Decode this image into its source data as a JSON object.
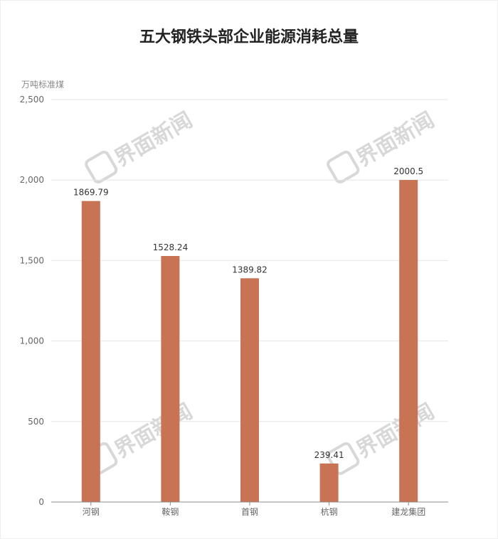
{
  "colors": {
    "bar": "#c87353",
    "grid": "#e6e6ea",
    "axis": "#8c8c8c",
    "text": "#666666",
    "value_label": "#333333",
    "watermark": "#d8d8d8"
  },
  "watermark_text": "界面新闻",
  "chart_data": {
    "type": "bar",
    "title": "五大钢铁头部企业能源消耗总量",
    "ylabel": "万吨标准煤",
    "xlabel": "",
    "categories": [
      "河钢",
      "鞍钢",
      "首钢",
      "杭钢",
      "建龙集团"
    ],
    "values": [
      1869.79,
      1528.24,
      1389.82,
      239.41,
      2000.5
    ],
    "value_labels": [
      "1869.79",
      "1528.24",
      "1389.82",
      "239.41",
      "2000.5"
    ],
    "ylim": [
      0,
      2500
    ],
    "yticks": [
      0,
      500,
      1000,
      1500,
      2000,
      2500
    ],
    "ytick_labels": [
      "0",
      "500",
      "1,000",
      "1,500",
      "2,000",
      "2,500"
    ],
    "grid": true,
    "legend": "none"
  }
}
